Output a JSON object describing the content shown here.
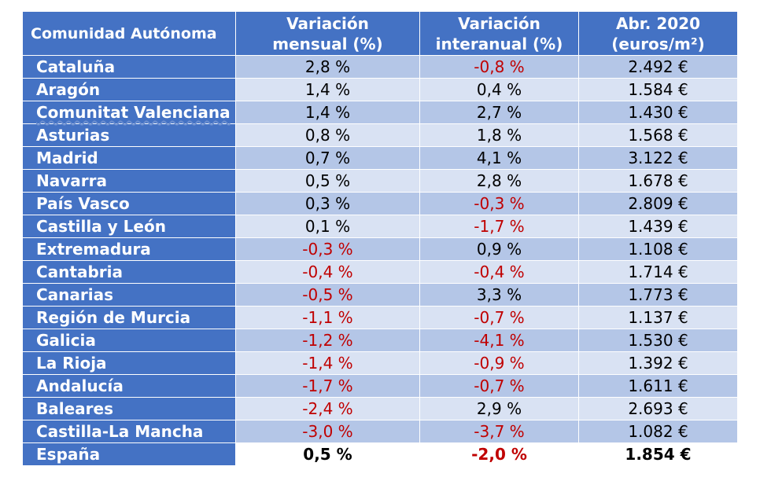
{
  "header": {
    "col0": "Comunidad Autónoma",
    "col1_line1": "Variación",
    "col1_line2": "mensual (%)",
    "col2_line1": "Variación",
    "col2_line2": "interanual (%)",
    "col3_line1": "Abr. 2020",
    "col3_line2": "(euros/m²)"
  },
  "rows": [
    {
      "name": "Cataluña",
      "mensual": "2,8 %",
      "interanual": "-0,8 %",
      "precio": "2.492 €"
    },
    {
      "name": "Aragón",
      "mensual": "1,4 %",
      "interanual": "0,4 %",
      "precio": "1.584 €"
    },
    {
      "name": "Comunitat Valenciana",
      "mensual": "1,4 %",
      "interanual": "2,7 %",
      "precio": "1.430 €"
    },
    {
      "name": "Asturias",
      "mensual": "0,8 %",
      "interanual": "1,8 %",
      "precio": "1.568 €"
    },
    {
      "name": "Madrid",
      "mensual": "0,7 %",
      "interanual": "4,1 %",
      "precio": "3.122 €"
    },
    {
      "name": "Navarra",
      "mensual": "0,5 %",
      "interanual": "2,8 %",
      "precio": "1.678 €"
    },
    {
      "name": "País Vasco",
      "mensual": "0,3 %",
      "interanual": "-0,3 %",
      "precio": "2.809 €"
    },
    {
      "name": "Castilla y León",
      "mensual": "0,1 %",
      "interanual": "-1,7 %",
      "precio": "1.439 €"
    },
    {
      "name": "Extremadura",
      "mensual": "-0,3 %",
      "interanual": "0,9 %",
      "precio": "1.108 €"
    },
    {
      "name": "Cantabria",
      "mensual": "-0,4 %",
      "interanual": "-0,4 %",
      "precio": "1.714 €"
    },
    {
      "name": "Canarias",
      "mensual": "-0,5 %",
      "interanual": "3,3 %",
      "precio": "1.773 €"
    },
    {
      "name": "Región de Murcia",
      "mensual": "-1,1 %",
      "interanual": "-0,7 %",
      "precio": "1.137 €"
    },
    {
      "name": "Galicia",
      "mensual": "-1,2 %",
      "interanual": "-4,1 %",
      "precio": "1.530 €"
    },
    {
      "name": "La Rioja",
      "mensual": "-1,4 %",
      "interanual": "-0,9 %",
      "precio": "1.392 €"
    },
    {
      "name": "Andalucía",
      "mensual": "-1,7 %",
      "interanual": "-0,7 %",
      "precio": "1.611 €"
    },
    {
      "name": "Baleares",
      "mensual": "-2,4 %",
      "interanual": "2,9 %",
      "precio": "2.693 €"
    },
    {
      "name": "Castilla-La Mancha",
      "mensual": "-3,0 %",
      "interanual": "-3,7 %",
      "precio": "1.082 €"
    }
  ],
  "total": {
    "name": "España",
    "mensual": "0,5 %",
    "interanual": "-2,0 %",
    "precio": "1.854 €"
  },
  "colors": {
    "header_bg": "#4472c4",
    "row_dark": "#b4c6e7",
    "row_light": "#d9e2f3",
    "negative": "#c00000"
  }
}
